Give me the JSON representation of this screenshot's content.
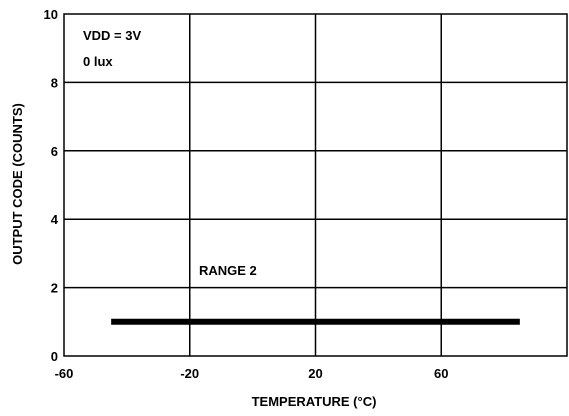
{
  "chart_data": {
    "type": "line",
    "xlabel": "TEMPERATURE (°C)",
    "ylabel": "OUTPUT CODE (COUNTS)",
    "xlim": [
      -60,
      100
    ],
    "ylim": [
      0,
      10
    ],
    "xticks": [
      -60,
      -20,
      20,
      60
    ],
    "yticks": [
      0,
      2,
      4,
      6,
      8,
      10
    ],
    "x_tick_labels": [
      "-60",
      "-20",
      "20",
      "60"
    ],
    "y_tick_labels": [
      "0",
      "2",
      "4",
      "6",
      "8",
      "10"
    ],
    "grid": true,
    "annotations": {
      "conditions": [
        "VDD = 3V",
        "0 lux"
      ],
      "series_label": "RANGE 2"
    },
    "series": [
      {
        "name": "RANGE 2",
        "x": [
          -45,
          85
        ],
        "y": [
          1,
          1
        ],
        "color": "#000000"
      }
    ]
  }
}
